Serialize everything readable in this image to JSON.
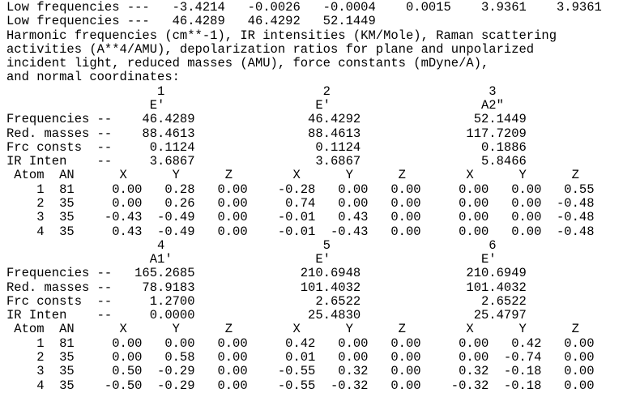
{
  "header": {
    "low_frequencies_label": "Low frequencies ---",
    "low_frequencies_row1": [
      -3.4214,
      -0.0026,
      -0.0004,
      0.0015,
      3.9361,
      3.9361
    ],
    "low_frequencies_row2": [
      46.4289,
      46.4292,
      52.1449
    ],
    "description_lines": [
      "Harmonic frequencies (cm**-1), IR intensities (KM/Mole), Raman scattering",
      "activities (A**4/AMU), depolarization ratios for plane and unpolarized",
      "incident light, reduced masses (AMU), force constants (mDyne/A),",
      "and normal coordinates:"
    ]
  },
  "row_labels": {
    "frequencies": "Frequencies --",
    "reduced_masses": "Red. masses --",
    "force_constants": "Frc consts  --",
    "ir_intensity": "IR Inten    --",
    "atom": "Atom",
    "atomic_number": "AN",
    "axes": [
      "X",
      "Y",
      "Z"
    ]
  },
  "mode_blocks": [
    {
      "modes": [
        1,
        2,
        3
      ],
      "symmetries": [
        "E'",
        "E'",
        "A2\""
      ],
      "frequencies": [
        46.4289,
        46.4292,
        52.1449
      ],
      "reduced_masses": [
        88.4613,
        88.4613,
        117.7209
      ],
      "force_constants": [
        0.1124,
        0.1124,
        0.1886
      ],
      "ir_intensities": [
        3.6867,
        3.6867,
        5.8466
      ],
      "atoms": [
        {
          "atom": 1,
          "an": 81,
          "displacements": [
            [
              0.0,
              0.28,
              0.0
            ],
            [
              -0.28,
              0.0,
              0.0
            ],
            [
              0.0,
              0.0,
              0.55
            ]
          ]
        },
        {
          "atom": 2,
          "an": 35,
          "displacements": [
            [
              0.0,
              0.26,
              0.0
            ],
            [
              0.74,
              0.0,
              0.0
            ],
            [
              0.0,
              0.0,
              -0.48
            ]
          ]
        },
        {
          "atom": 3,
          "an": 35,
          "displacements": [
            [
              -0.43,
              -0.49,
              0.0
            ],
            [
              -0.01,
              0.43,
              0.0
            ],
            [
              0.0,
              0.0,
              -0.48
            ]
          ]
        },
        {
          "atom": 4,
          "an": 35,
          "displacements": [
            [
              0.43,
              -0.49,
              0.0
            ],
            [
              -0.01,
              -0.43,
              0.0
            ],
            [
              0.0,
              0.0,
              -0.48
            ]
          ]
        }
      ]
    },
    {
      "modes": [
        4,
        5,
        6
      ],
      "symmetries": [
        "A1'",
        "E'",
        "E'"
      ],
      "frequencies": [
        165.2685,
        210.6948,
        210.6949
      ],
      "reduced_masses": [
        78.9183,
        101.4032,
        101.4032
      ],
      "force_constants": [
        1.27,
        2.6522,
        2.6522
      ],
      "ir_intensities": [
        0.0,
        25.483,
        25.4797
      ],
      "atoms": [
        {
          "atom": 1,
          "an": 81,
          "displacements": [
            [
              0.0,
              0.0,
              0.0
            ],
            [
              0.42,
              0.0,
              0.0
            ],
            [
              0.0,
              0.42,
              0.0
            ]
          ]
        },
        {
          "atom": 2,
          "an": 35,
          "displacements": [
            [
              0.0,
              0.58,
              0.0
            ],
            [
              0.01,
              0.0,
              0.0
            ],
            [
              0.0,
              -0.74,
              0.0
            ]
          ]
        },
        {
          "atom": 3,
          "an": 35,
          "displacements": [
            [
              0.5,
              -0.29,
              0.0
            ],
            [
              -0.55,
              0.32,
              0.0
            ],
            [
              0.32,
              -0.18,
              0.0
            ]
          ]
        },
        {
          "atom": 4,
          "an": 35,
          "displacements": [
            [
              -0.5,
              -0.29,
              0.0
            ],
            [
              -0.55,
              -0.32,
              0.0
            ],
            [
              -0.32,
              -0.18,
              0.0
            ]
          ]
        }
      ]
    }
  ],
  "display_lines": [
    "Low frequencies ---   -3.4214   -0.0026   -0.0004    0.0015    3.9361    3.9361",
    "Low frequencies ---   46.4289   46.4292   52.1449",
    "Harmonic frequencies (cm**-1), IR intensities (KM/Mole), Raman scattering",
    "activities (A**4/AMU), depolarization ratios for plane and unpolarized",
    "incident light, reduced masses (AMU), force constants (mDyne/A),",
    "and normal coordinates:",
    "                    1                     2                     3",
    "                   E'                    E'                    A2\"",
    "Frequencies --    46.4289               46.4292               52.1449",
    "Red. masses --    88.4613               88.4613              117.7209",
    "Frc consts  --     0.1124                0.1124                0.1886",
    "IR Inten    --     3.6867                3.6867                5.8466",
    " Atom  AN      X      Y      Z        X      Y      Z        X      Y      Z",
    "    1  81     0.00   0.28   0.00    -0.28   0.00   0.00     0.00   0.00   0.55",
    "    2  35     0.00   0.26   0.00     0.74   0.00   0.00     0.00   0.00  -0.48",
    "    3  35    -0.43  -0.49   0.00    -0.01   0.43   0.00     0.00   0.00  -0.48",
    "    4  35     0.43  -0.49   0.00    -0.01  -0.43   0.00     0.00   0.00  -0.48",
    "                    4                     5                     6",
    "                   A1'                   E'                    E'",
    "Frequencies --   165.2685              210.6948              210.6949",
    "Red. masses --    78.9183              101.4032              101.4032",
    "Frc consts  --     1.2700                2.6522                2.6522",
    "IR Inten    --     0.0000               25.4830               25.4797",
    " Atom  AN      X      Y      Z        X      Y      Z        X      Y      Z",
    "    1  81     0.00   0.00   0.00     0.42   0.00   0.00     0.00   0.42   0.00",
    "    2  35     0.00   0.58   0.00     0.01   0.00   0.00     0.00  -0.74   0.00",
    "    3  35     0.50  -0.29   0.00    -0.55   0.32   0.00     0.32  -0.18   0.00",
    "    4  35    -0.50  -0.29   0.00    -0.55  -0.32   0.00    -0.32  -0.18   0.00"
  ]
}
